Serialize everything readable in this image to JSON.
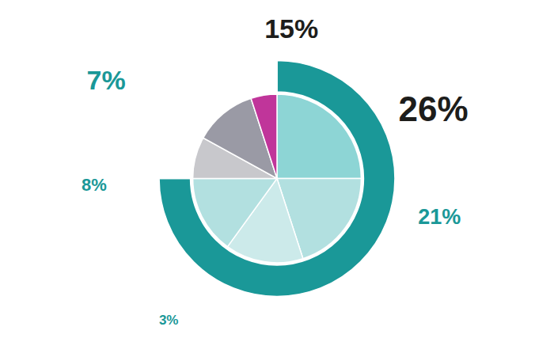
{
  "chart_data": {
    "type": "pie",
    "series": [
      {
        "values": [
          25,
          20,
          15,
          15,
          8,
          12,
          5
        ],
        "colors": [
          "#8dd5d5",
          "#b2e0e0",
          "#cceaea",
          "#b2e0e0",
          "#c8c8cc",
          "#9a9aa5",
          "#c0359a"
        ]
      },
      {
        "values": [
          270,
          90
        ],
        "colors": [
          "#1a9898",
          "#ffffff"
        ]
      }
    ],
    "annotations": [
      {
        "text": "7%",
        "color": "#1a9898"
      },
      {
        "text": "8%",
        "color": "#1a9898"
      },
      {
        "text": "3%",
        "color": "#1a9898"
      },
      {
        "text": "15%",
        "color": "#1d1d1b"
      },
      {
        "text": "26%",
        "color": "#1d1d1b"
      },
      {
        "text": "21%",
        "color": "#1a9898"
      }
    ]
  }
}
